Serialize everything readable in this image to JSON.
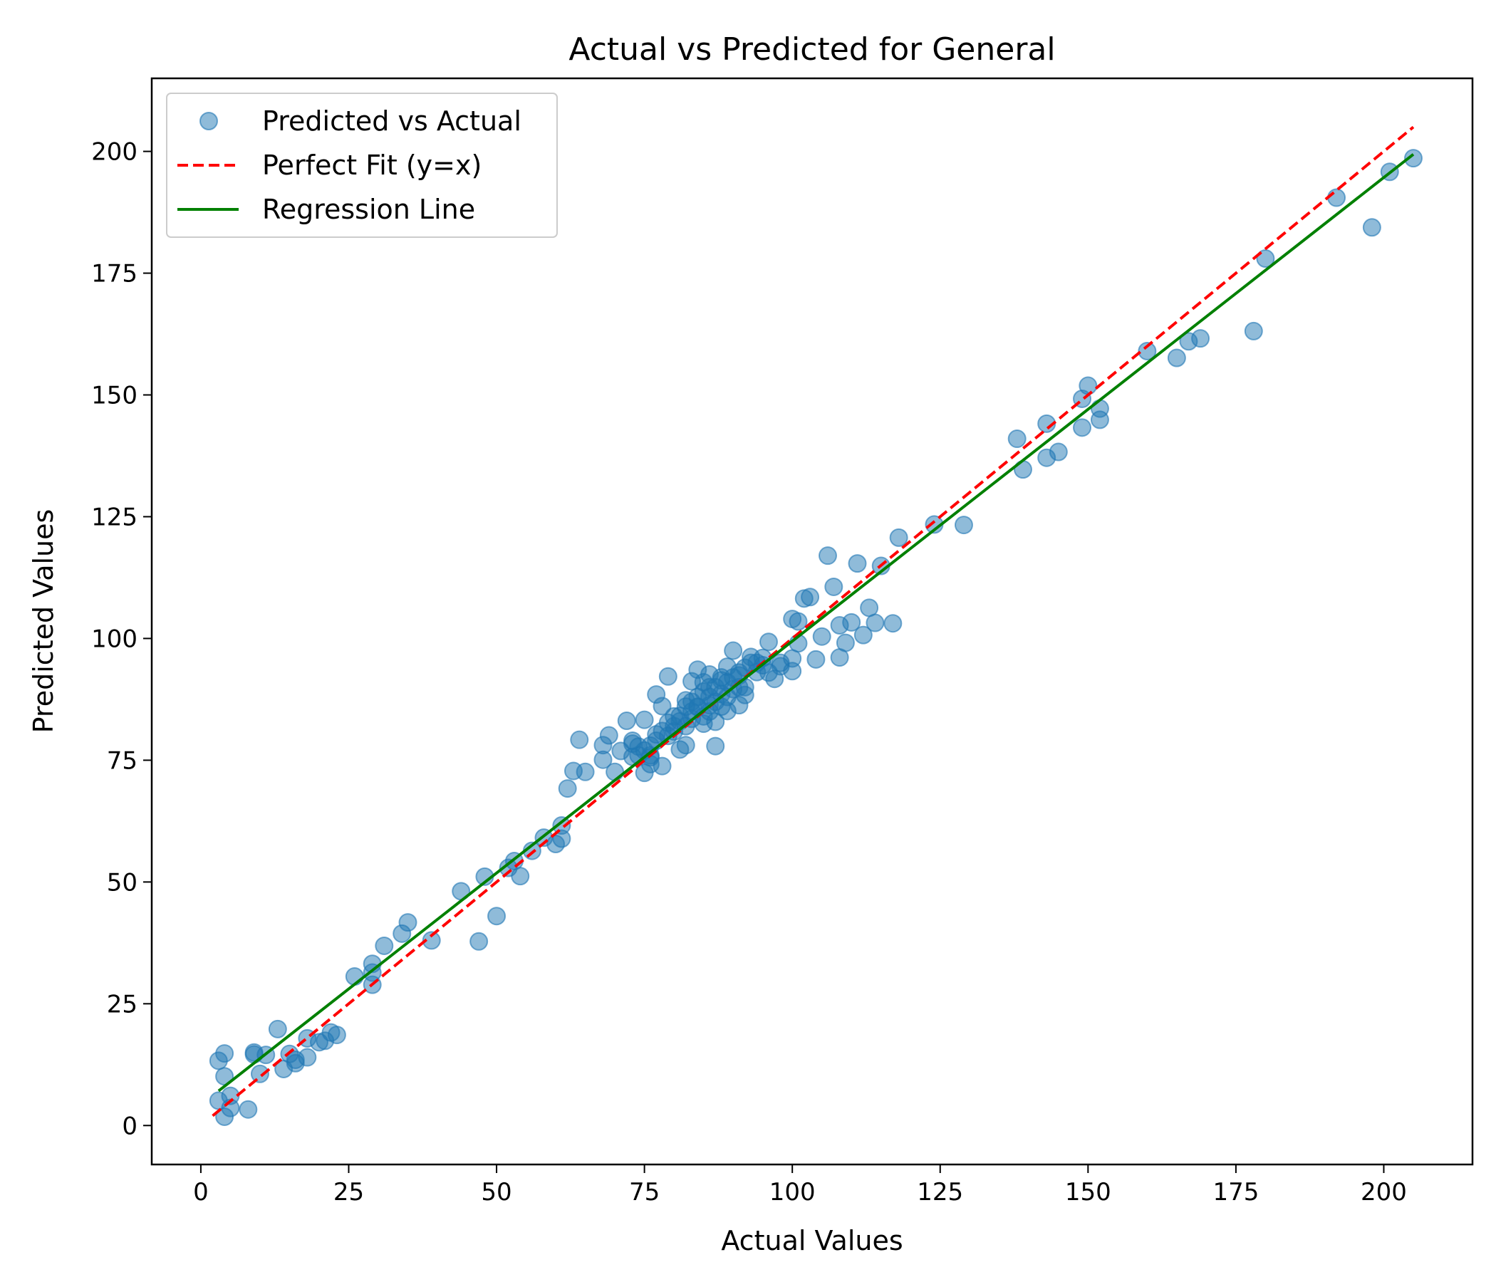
{
  "chart_data": {
    "type": "scatter",
    "title": "Actual vs Predicted for General",
    "xlabel": "Actual Values",
    "ylabel": "Predicted Values",
    "xlim": [
      -8.3,
      215
    ],
    "ylim": [
      -8,
      215
    ],
    "xticks": [
      0,
      25,
      50,
      75,
      100,
      125,
      150,
      175,
      200
    ],
    "yticks": [
      0,
      25,
      50,
      75,
      100,
      125,
      150,
      175,
      200
    ],
    "grid": false,
    "legend_position": "top-left",
    "colors": {
      "scatter": "#1f77b4",
      "perfect_fit": "#ff0000",
      "regression": "#008000"
    },
    "series": [
      {
        "name": "Predicted vs Actual",
        "kind": "scatter",
        "points": [
          [
            3,
            13.3
          ],
          [
            4,
            14.8
          ],
          [
            3,
            5.1
          ],
          [
            4,
            10.1
          ],
          [
            4,
            1.8
          ],
          [
            5,
            3.6
          ],
          [
            5,
            6.1
          ],
          [
            8,
            3.3
          ],
          [
            9,
            15
          ],
          [
            9,
            14.6
          ],
          [
            10,
            10.6
          ],
          [
            11,
            14.5
          ],
          [
            13,
            19.8
          ],
          [
            14,
            11.6
          ],
          [
            15,
            14.7
          ],
          [
            16,
            12.8
          ],
          [
            16,
            13.5
          ],
          [
            18,
            14
          ],
          [
            18,
            17.9
          ],
          [
            20,
            17.1
          ],
          [
            21,
            17.4
          ],
          [
            22,
            19.1
          ],
          [
            23,
            18.6
          ],
          [
            26,
            30.6
          ],
          [
            29,
            33.2
          ],
          [
            29,
            28.9
          ],
          [
            29,
            31.4
          ],
          [
            31,
            36.9
          ],
          [
            34,
            39.4
          ],
          [
            35,
            41.7
          ],
          [
            39,
            38
          ],
          [
            44,
            48.1
          ],
          [
            47,
            37.8
          ],
          [
            48,
            51.1
          ],
          [
            50,
            43
          ],
          [
            52,
            52.9
          ],
          [
            53,
            54.3
          ],
          [
            54,
            51.2
          ],
          [
            56,
            56.4
          ],
          [
            58,
            59.1
          ],
          [
            60,
            57.8
          ],
          [
            61,
            58.9
          ],
          [
            61,
            61.6
          ],
          [
            62,
            69.2
          ],
          [
            63,
            72.8
          ],
          [
            64,
            79.2
          ],
          [
            65,
            72.6
          ],
          [
            68,
            78.1
          ],
          [
            68,
            75.1
          ],
          [
            69,
            80.1
          ],
          [
            70,
            72.6
          ],
          [
            71,
            76.9
          ],
          [
            72,
            83.1
          ],
          [
            73,
            78.4
          ],
          [
            73,
            75.7
          ],
          [
            74,
            77.8
          ],
          [
            75,
            72.4
          ],
          [
            75,
            83.3
          ],
          [
            76,
            75.6
          ],
          [
            76,
            74.2
          ],
          [
            77,
            88.5
          ],
          [
            77,
            80.3
          ],
          [
            78,
            73.8
          ],
          [
            78,
            86.1
          ],
          [
            79,
            92.2
          ],
          [
            79,
            82.7
          ],
          [
            80,
            80.9
          ],
          [
            81,
            84.1
          ],
          [
            81,
            77.2
          ],
          [
            82,
            87.3
          ],
          [
            82,
            78.1
          ],
          [
            83,
            91.2
          ],
          [
            83,
            83.5
          ],
          [
            84,
            93.6
          ],
          [
            84,
            85.9
          ],
          [
            85,
            82.5
          ],
          [
            85,
            89.1
          ],
          [
            86,
            92.6
          ],
          [
            86,
            86.3
          ],
          [
            87,
            82.9
          ],
          [
            87,
            77.9
          ],
          [
            88,
            88.6
          ],
          [
            88,
            91.4
          ],
          [
            89,
            94.2
          ],
          [
            89,
            85.1
          ],
          [
            90,
            97.5
          ],
          [
            90,
            89.6
          ],
          [
            91,
            86.3
          ],
          [
            91,
            92.4
          ],
          [
            92,
            88.4
          ],
          [
            93,
            96.2
          ],
          [
            94,
            93.1
          ],
          [
            95,
            94.5
          ],
          [
            96,
            99.3
          ],
          [
            97,
            91.7
          ],
          [
            98,
            94.3
          ],
          [
            100,
            104
          ],
          [
            100,
            95.9
          ],
          [
            100,
            93.3
          ],
          [
            101,
            103.5
          ],
          [
            102,
            108.2
          ],
          [
            103,
            108.5
          ],
          [
            104,
            95.7
          ],
          [
            105,
            100.4
          ],
          [
            106,
            117
          ],
          [
            107,
            110.6
          ],
          [
            108,
            96.1
          ],
          [
            108,
            102.7
          ],
          [
            109,
            99.1
          ],
          [
            110,
            103.3
          ],
          [
            111,
            115.4
          ],
          [
            112,
            100.7
          ],
          [
            113,
            106.3
          ],
          [
            114,
            103.2
          ],
          [
            115,
            114.9
          ],
          [
            117,
            103.1
          ],
          [
            118,
            120.7
          ],
          [
            124,
            123.4
          ],
          [
            129,
            123.3
          ],
          [
            138,
            141
          ],
          [
            139,
            134.7
          ],
          [
            143,
            144.1
          ],
          [
            143,
            137.1
          ],
          [
            145,
            138.3
          ],
          [
            149,
            149.2
          ],
          [
            149,
            143.3
          ],
          [
            150,
            151.9
          ],
          [
            152,
            147.2
          ],
          [
            152,
            144.9
          ],
          [
            160,
            159
          ],
          [
            165,
            157.6
          ],
          [
            167,
            161
          ],
          [
            169,
            161.6
          ],
          [
            178,
            163.1
          ],
          [
            180,
            178
          ],
          [
            192,
            190.5
          ],
          [
            198,
            184.4
          ],
          [
            201,
            195.8
          ],
          [
            205,
            198.6
          ],
          [
            86,
            88
          ],
          [
            80,
            82
          ],
          [
            81,
            83
          ],
          [
            83,
            85
          ],
          [
            84,
            86
          ],
          [
            85,
            84
          ],
          [
            86,
            85
          ],
          [
            87,
            87
          ],
          [
            88,
            86
          ],
          [
            89,
            88
          ],
          [
            91,
            90
          ],
          [
            92,
            90
          ],
          [
            76,
            76
          ],
          [
            75,
            77
          ],
          [
            74,
            76
          ],
          [
            73,
            79
          ],
          [
            79,
            80
          ],
          [
            82,
            82
          ],
          [
            84,
            88
          ],
          [
            86,
            90
          ],
          [
            88,
            92
          ],
          [
            90,
            92
          ],
          [
            92,
            94
          ],
          [
            94,
            95
          ],
          [
            96,
            93
          ],
          [
            98,
            95
          ],
          [
            101,
            99
          ],
          [
            77,
            79
          ],
          [
            80,
            84
          ],
          [
            83,
            87
          ],
          [
            85,
            91
          ],
          [
            87,
            90
          ],
          [
            89,
            91
          ],
          [
            91,
            93
          ],
          [
            93,
            95
          ],
          [
            95,
            96
          ],
          [
            78,
            81
          ],
          [
            76,
            78
          ],
          [
            82,
            86
          ]
        ]
      },
      {
        "name": "Perfect Fit (y=x)",
        "kind": "line",
        "style": "dashed",
        "x": [
          2,
          205
        ],
        "y": [
          2,
          205
        ]
      },
      {
        "name": "Regression Line",
        "kind": "line",
        "style": "solid",
        "x": [
          3,
          205
        ],
        "y": [
          7.1,
          199.4
        ]
      }
    ]
  }
}
